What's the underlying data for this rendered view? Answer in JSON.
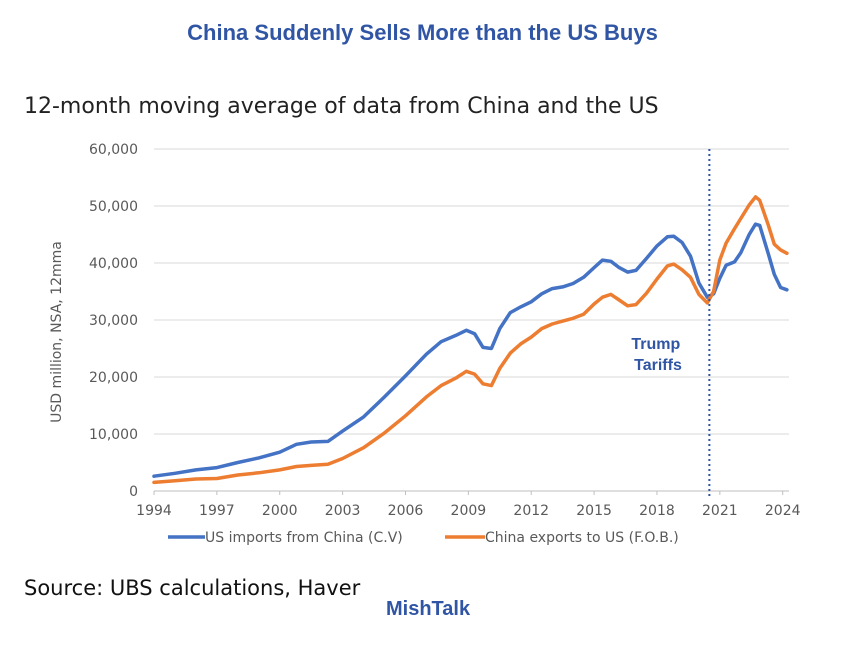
{
  "header": {
    "title": "China Suddenly Sells More than the US Buys",
    "subtitle": "12-month moving average of data from China and the US"
  },
  "footer": {
    "source": "Source: UBS calculations, Haver",
    "brand": "MishTalk"
  },
  "colors": {
    "title": "#2F55A4",
    "brand": "#2F55A4",
    "annotation": "#2F55A4",
    "series_us": "#4472C4",
    "series_china": "#ED7D31",
    "grid": "#D9D9D9",
    "axis_text": "#595959"
  },
  "chart_data": {
    "type": "line",
    "title": "China Suddenly Sells More than the US Buys",
    "subtitle": "12-month moving average of data from China and the US",
    "xlabel": "",
    "ylabel": "USD million, NSA, 12mma",
    "xlim": [
      1994,
      2024.3
    ],
    "ylim": [
      0,
      60000
    ],
    "x_ticks": [
      "1994",
      "1997",
      "2000",
      "2003",
      "2006",
      "2009",
      "2012",
      "2015",
      "2018",
      "2021",
      "2024"
    ],
    "y_ticks": [
      "0",
      "10,000",
      "20,000",
      "30,000",
      "40,000",
      "50,000",
      "60,000"
    ],
    "grid": "horizontal",
    "legend_position": "bottom",
    "annotations": [
      {
        "text": "Trump Tariffs",
        "lines": [
          "Trump",
          "Tariffs"
        ],
        "x": 2020.5,
        "line_style": "dotted vertical"
      }
    ],
    "series": [
      {
        "name": "US imports from China (C.V)",
        "points": [
          [
            1994,
            2600
          ],
          [
            1995,
            3100
          ],
          [
            1996,
            3700
          ],
          [
            1997,
            4100
          ],
          [
            1998,
            5000
          ],
          [
            1999,
            5800
          ],
          [
            2000,
            6800
          ],
          [
            2000.8,
            8200
          ],
          [
            2001.5,
            8600
          ],
          [
            2002.3,
            8700
          ],
          [
            2003,
            10500
          ],
          [
            2004,
            13000
          ],
          [
            2005,
            16500
          ],
          [
            2006,
            20200
          ],
          [
            2007,
            24000
          ],
          [
            2007.7,
            26200
          ],
          [
            2008.4,
            27300
          ],
          [
            2008.9,
            28200
          ],
          [
            2009.3,
            27600
          ],
          [
            2009.7,
            25200
          ],
          [
            2010.1,
            25000
          ],
          [
            2010.5,
            28500
          ],
          [
            2011,
            31300
          ],
          [
            2011.5,
            32300
          ],
          [
            2012,
            33200
          ],
          [
            2012.5,
            34600
          ],
          [
            2013,
            35500
          ],
          [
            2013.5,
            35800
          ],
          [
            2014,
            36400
          ],
          [
            2014.5,
            37500
          ],
          [
            2015,
            39200
          ],
          [
            2015.4,
            40500
          ],
          [
            2015.8,
            40300
          ],
          [
            2016.2,
            39200
          ],
          [
            2016.6,
            38400
          ],
          [
            2017,
            38700
          ],
          [
            2017.5,
            40800
          ],
          [
            2018,
            43000
          ],
          [
            2018.5,
            44600
          ],
          [
            2018.8,
            44700
          ],
          [
            2019.2,
            43600
          ],
          [
            2019.6,
            41200
          ],
          [
            2020,
            36500
          ],
          [
            2020.4,
            34000
          ],
          [
            2020.7,
            34600
          ],
          [
            2021,
            37300
          ],
          [
            2021.3,
            39600
          ],
          [
            2021.7,
            40200
          ],
          [
            2022,
            41800
          ],
          [
            2022.4,
            45000
          ],
          [
            2022.7,
            46800
          ],
          [
            2022.9,
            46600
          ],
          [
            2023.3,
            41800
          ],
          [
            2023.6,
            38000
          ],
          [
            2023.9,
            35700
          ],
          [
            2024.2,
            35300
          ]
        ]
      },
      {
        "name": "China exports to US (F.O.B.)",
        "points": [
          [
            1994,
            1500
          ],
          [
            1995,
            1800
          ],
          [
            1996,
            2100
          ],
          [
            1997,
            2200
          ],
          [
            1998,
            2800
          ],
          [
            1999,
            3200
          ],
          [
            2000,
            3700
          ],
          [
            2000.8,
            4300
          ],
          [
            2001.5,
            4500
          ],
          [
            2002.3,
            4700
          ],
          [
            2003,
            5700
          ],
          [
            2004,
            7600
          ],
          [
            2005,
            10200
          ],
          [
            2006,
            13200
          ],
          [
            2007,
            16500
          ],
          [
            2007.7,
            18500
          ],
          [
            2008.4,
            19800
          ],
          [
            2008.9,
            21000
          ],
          [
            2009.3,
            20500
          ],
          [
            2009.7,
            18800
          ],
          [
            2010.1,
            18500
          ],
          [
            2010.5,
            21500
          ],
          [
            2011,
            24200
          ],
          [
            2011.5,
            25800
          ],
          [
            2012,
            27000
          ],
          [
            2012.5,
            28500
          ],
          [
            2013,
            29300
          ],
          [
            2013.5,
            29800
          ],
          [
            2014,
            30300
          ],
          [
            2014.5,
            31000
          ],
          [
            2015,
            32800
          ],
          [
            2015.4,
            34000
          ],
          [
            2015.8,
            34500
          ],
          [
            2016.2,
            33500
          ],
          [
            2016.6,
            32500
          ],
          [
            2017,
            32700
          ],
          [
            2017.5,
            34700
          ],
          [
            2018,
            37200
          ],
          [
            2018.5,
            39500
          ],
          [
            2018.8,
            39800
          ],
          [
            2019.2,
            38800
          ],
          [
            2019.6,
            37500
          ],
          [
            2020,
            34500
          ],
          [
            2020.4,
            33000
          ],
          [
            2020.7,
            35000
          ],
          [
            2021,
            40500
          ],
          [
            2021.3,
            43500
          ],
          [
            2021.7,
            46000
          ],
          [
            2022,
            47800
          ],
          [
            2022.4,
            50200
          ],
          [
            2022.7,
            51600
          ],
          [
            2022.9,
            51000
          ],
          [
            2023.3,
            46800
          ],
          [
            2023.6,
            43300
          ],
          [
            2023.9,
            42300
          ],
          [
            2024.2,
            41700
          ]
        ]
      }
    ]
  }
}
